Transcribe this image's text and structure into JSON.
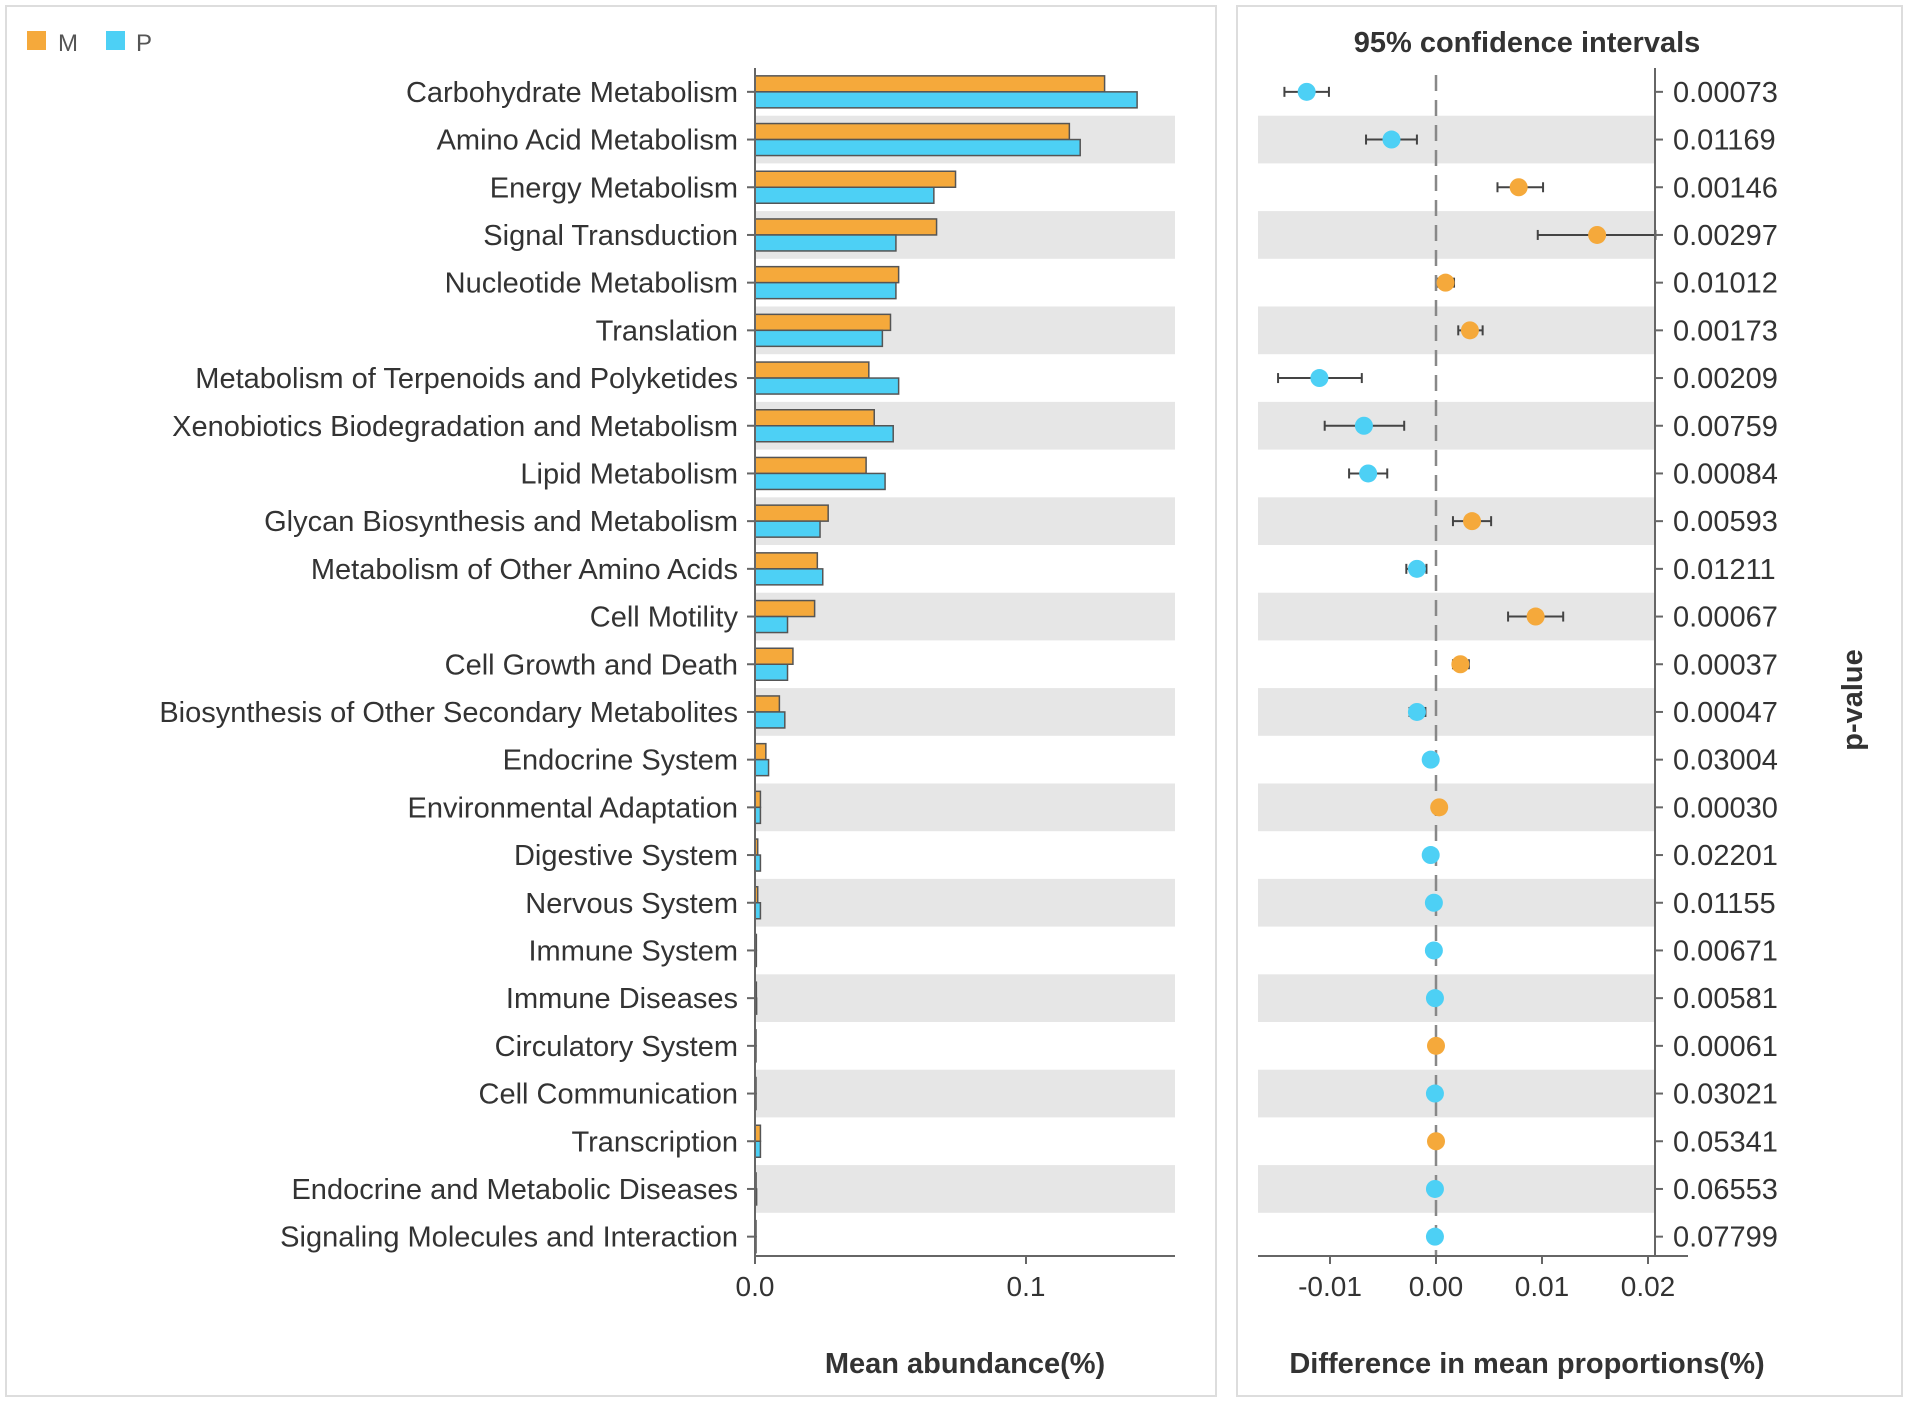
{
  "chart_data": [
    {
      "type": "bar",
      "orientation": "horizontal",
      "title": "",
      "xlabel": "Mean abundance(%)",
      "ylabel": "",
      "xlim": [
        0,
        0.155
      ],
      "xticks": [
        0.0,
        0.1
      ],
      "xtick_labels": [
        "0.0",
        "0.1"
      ],
      "grid": false,
      "legend_position": "top-left",
      "categories": [
        "Carbohydrate Metabolism",
        "Amino Acid Metabolism",
        "Energy Metabolism",
        "Signal Transduction",
        "Nucleotide Metabolism",
        "Translation",
        "Metabolism of Terpenoids and Polyketides",
        "Xenobiotics Biodegradation and Metabolism",
        "Lipid Metabolism",
        "Glycan Biosynthesis and Metabolism",
        "Metabolism of Other Amino Acids",
        "Cell Motility",
        "Cell Growth and Death",
        "Biosynthesis of Other Secondary Metabolites",
        "Endocrine System",
        "Environmental Adaptation",
        "Digestive System",
        "Nervous System",
        "Immune System",
        "Immune Diseases",
        "Circulatory System",
        "Cell Communication",
        "Transcription",
        "Endocrine and Metabolic Diseases",
        "Signaling Molecules and Interaction"
      ],
      "series": [
        {
          "name": "M",
          "color": "#F5A93B",
          "values": [
            0.129,
            0.116,
            0.074,
            0.067,
            0.053,
            0.05,
            0.042,
            0.044,
            0.041,
            0.027,
            0.023,
            0.022,
            0.014,
            0.009,
            0.004,
            0.002,
            0.001,
            0.001,
            0.0005,
            0.0005,
            0.0002,
            0.0002,
            0.002,
            0.0004,
            0.0002
          ]
        },
        {
          "name": "P",
          "color": "#4DD0F5",
          "values": [
            0.141,
            0.12,
            0.066,
            0.052,
            0.052,
            0.047,
            0.053,
            0.051,
            0.048,
            0.024,
            0.025,
            0.012,
            0.012,
            0.011,
            0.005,
            0.002,
            0.002,
            0.002,
            0.0005,
            0.0006,
            0.0002,
            0.0003,
            0.002,
            0.0006,
            0.0003
          ]
        }
      ]
    },
    {
      "type": "scatter",
      "subtype": "confidence-interval",
      "title": "95% confidence intervals",
      "xlabel": "Difference in mean proportions(%)",
      "ylabel": "p-value",
      "xlim": [
        -0.0168,
        0.0237
      ],
      "xticks": [
        -0.01,
        0.0,
        0.01,
        0.02
      ],
      "xtick_labels": [
        "-0.01",
        "0.00",
        "0.01",
        "0.02"
      ],
      "reference_line": 0.0,
      "grid": false,
      "categories": [
        "Carbohydrate Metabolism",
        "Amino Acid Metabolism",
        "Energy Metabolism",
        "Signal Transduction",
        "Nucleotide Metabolism",
        "Translation",
        "Metabolism of Terpenoids and Polyketides",
        "Xenobiotics Biodegradation and Metabolism",
        "Lipid Metabolism",
        "Glycan Biosynthesis and Metabolism",
        "Metabolism of Other Amino Acids",
        "Cell Motility",
        "Cell Growth and Death",
        "Biosynthesis of Other Secondary Metabolites",
        "Endocrine System",
        "Environmental Adaptation",
        "Digestive System",
        "Nervous System",
        "Immune System",
        "Immune Diseases",
        "Circulatory System",
        "Cell Communication",
        "Transcription",
        "Endocrine and Metabolic Diseases",
        "Signaling Molecules and Interaction"
      ],
      "differences": [
        -0.0122,
        -0.0042,
        0.0078,
        0.0152,
        0.0009,
        0.0032,
        -0.011,
        -0.0068,
        -0.0064,
        0.0034,
        -0.0018,
        0.0094,
        0.0023,
        -0.0018,
        -0.0005,
        0.0003,
        -0.0005,
        -0.0002,
        -0.0002,
        -0.0001,
        0.0,
        -0.0001,
        0.0,
        -0.0001,
        -0.0001
      ],
      "ci_low": [
        -0.0143,
        -0.0066,
        0.0058,
        0.0096,
        0.0002,
        0.0021,
        -0.0149,
        -0.0105,
        -0.0082,
        0.0016,
        -0.0028,
        0.0068,
        0.0016,
        -0.0025,
        -0.0009,
        0.0001,
        -0.0009,
        -0.0004,
        -0.0004,
        -0.0002,
        -0.0001,
        -0.0002,
        -0.0001,
        -0.0002,
        -0.0002
      ],
      "ci_high": [
        -0.0101,
        -0.0018,
        0.0101,
        0.0207,
        0.0017,
        0.0044,
        -0.007,
        -0.003,
        -0.0046,
        0.0052,
        -0.0009,
        0.012,
        0.0031,
        -0.001,
        -0.0001,
        0.0005,
        -0.0001,
        0.0,
        0.0,
        0.0001,
        0.0001,
        0.0001,
        0.0001,
        0.0,
        0.0
      ],
      "p_values": [
        "0.00073",
        "0.01169",
        "0.00146",
        "0.00297",
        "0.01012",
        "0.00173",
        "0.00209",
        "0.00759",
        "0.00084",
        "0.00593",
        "0.01211",
        "0.00067",
        "0.00037",
        "0.00047",
        "0.03004",
        "0.00030",
        "0.02201",
        "0.01155",
        "0.00671",
        "0.00581",
        "0.00061",
        "0.03021",
        "0.05341",
        "0.06553",
        "0.07799"
      ],
      "colors": {
        "positive": "#F5A93B",
        "negative": "#4DD0F5",
        "errorbar": "#444444"
      }
    }
  ],
  "style": {
    "stripe_color": "#E6E6E6",
    "border_color": "#DDDDDD",
    "axis_color": "#666666",
    "text_color": "#333333"
  }
}
